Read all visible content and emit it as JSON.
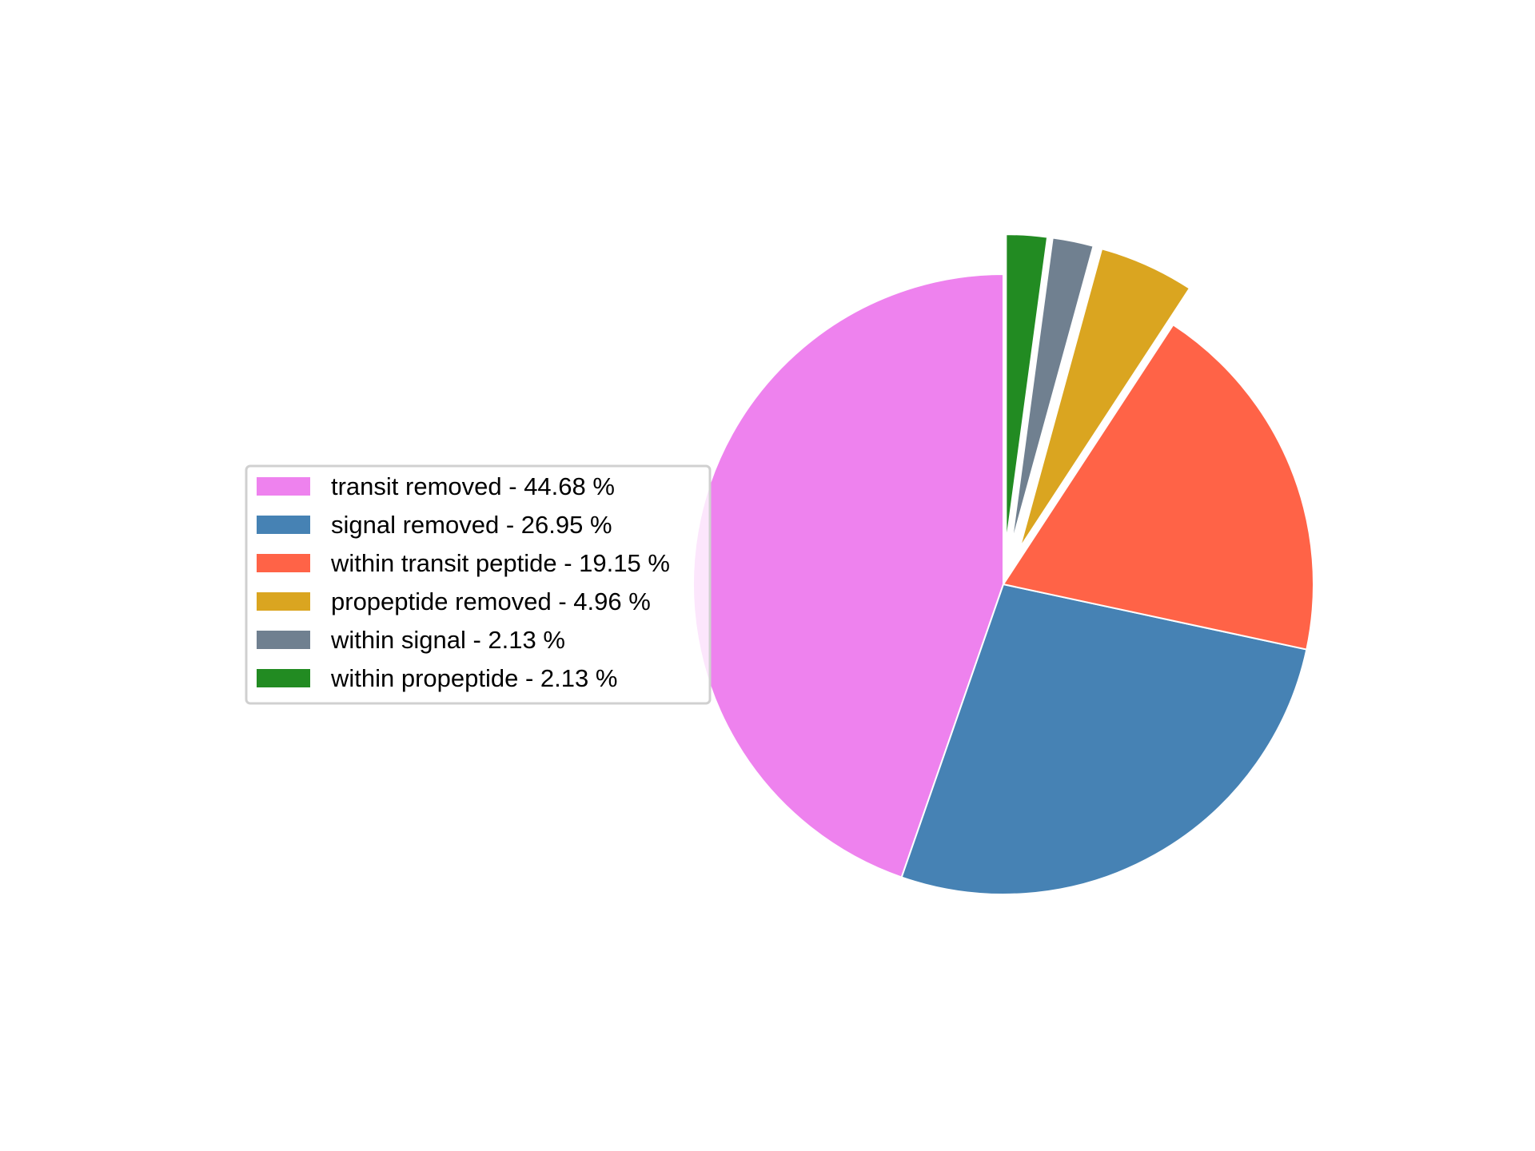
{
  "chart_data": {
    "type": "pie",
    "title": "",
    "legend_position": "center-left",
    "slices": [
      {
        "label": "transit removed",
        "value": 44.68,
        "color": "#EE82EE",
        "exploded": false
      },
      {
        "label": "signal removed",
        "value": 26.95,
        "color": "#4682B4",
        "exploded": false
      },
      {
        "label": "within transit peptide",
        "value": 19.15,
        "color": "#FF6347",
        "exploded": false
      },
      {
        "label": "propeptide removed",
        "value": 4.96,
        "color": "#DAA520",
        "exploded": true
      },
      {
        "label": "within signal",
        "value": 2.13,
        "color": "#708090",
        "exploded": true
      },
      {
        "label": "within propeptide",
        "value": 2.13,
        "color": "#228B22",
        "exploded": true
      }
    ],
    "legend": [
      "transit removed - 44.68 %",
      "signal removed - 26.95 %",
      "within transit peptide - 19.15 %",
      "propeptide removed - 4.96 %",
      "within signal - 2.13 %",
      "within propeptide - 2.13 %"
    ]
  }
}
